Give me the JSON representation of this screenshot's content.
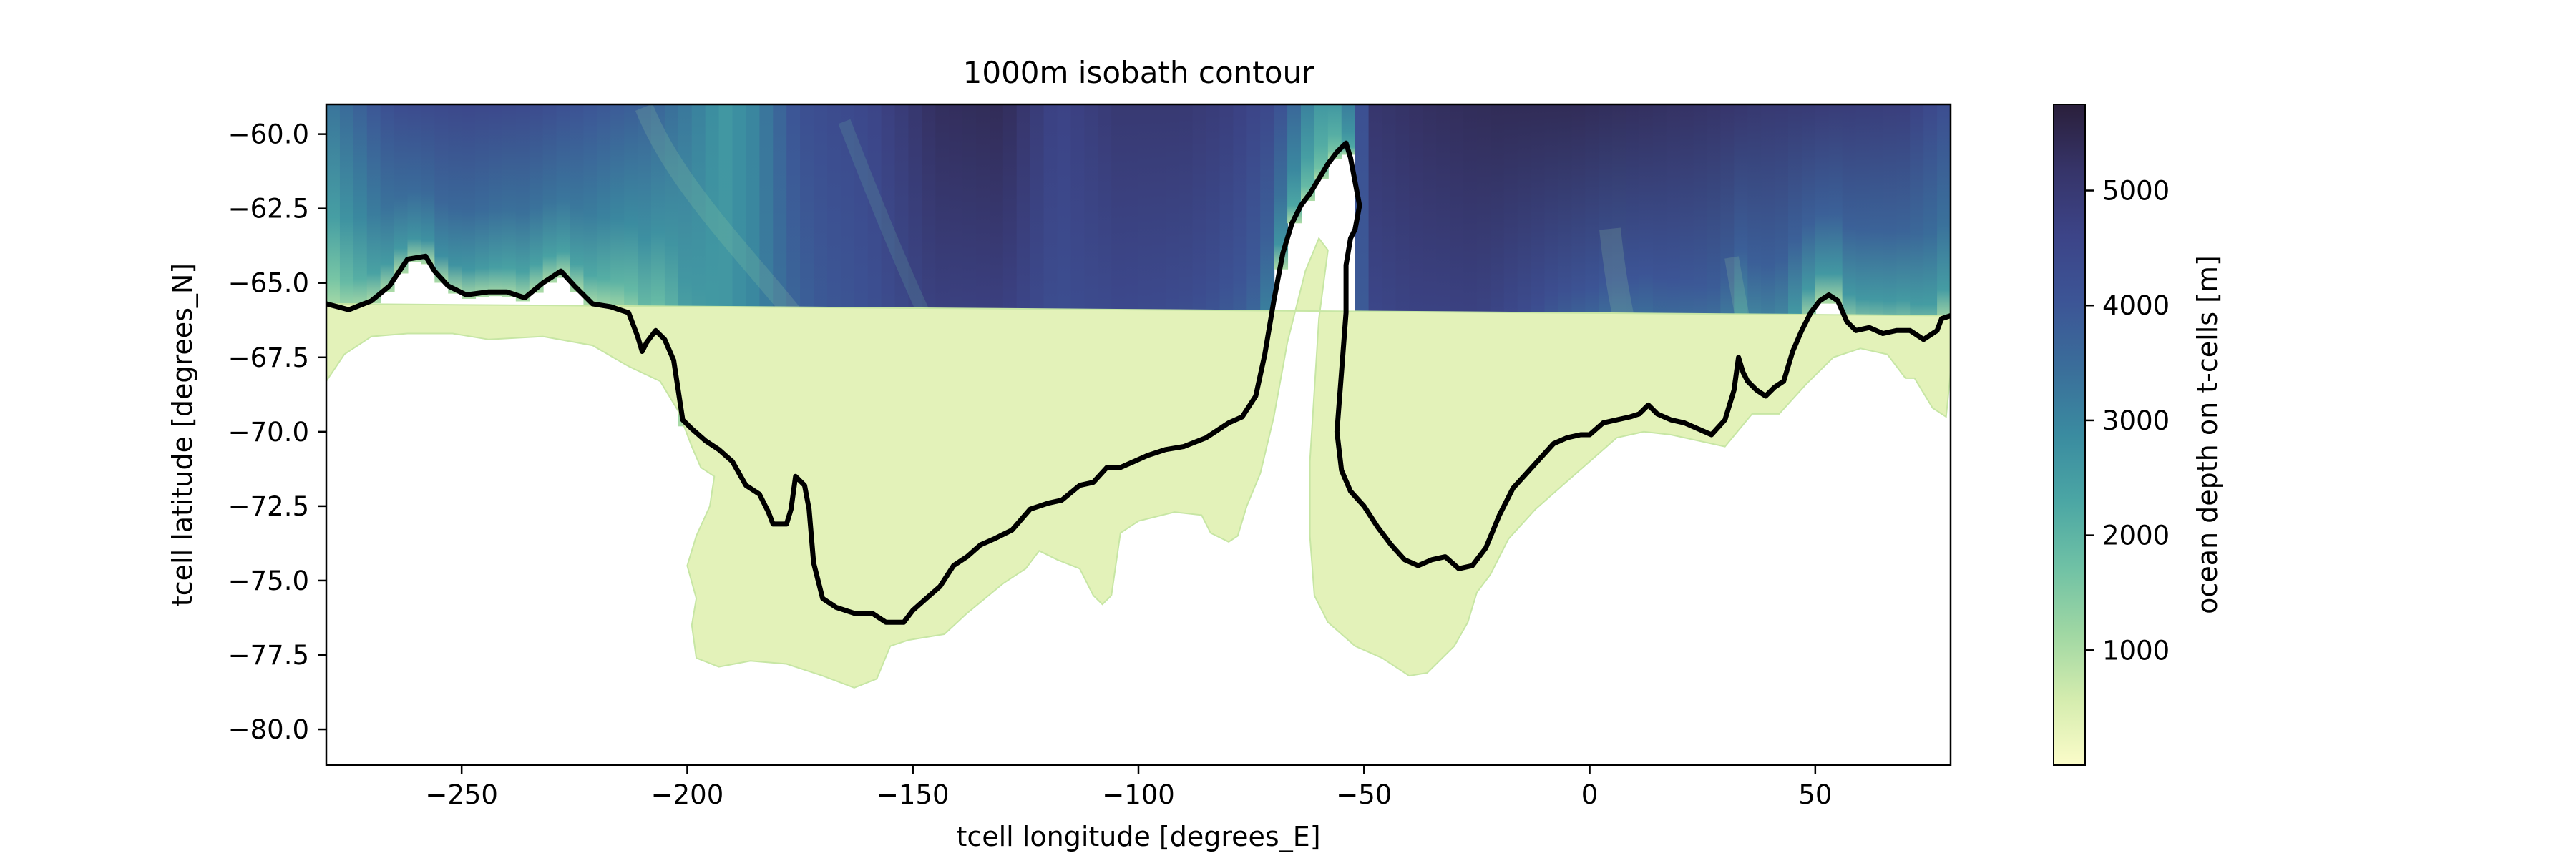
{
  "chart_data": {
    "type": "heatmap",
    "title": "1000m isobath contour",
    "xlabel": "tcell longitude [degrees_E]",
    "ylabel": "tcell latitude [degrees_N]",
    "xlim": [
      -280,
      80
    ],
    "ylim": [
      -81.2,
      -59.0
    ],
    "xticks": [
      -250,
      -200,
      -150,
      -100,
      -50,
      0,
      50
    ],
    "xtick_labels": [
      "−250",
      "−200",
      "−150",
      "−100",
      "−50",
      "0",
      "50"
    ],
    "yticks": [
      -60.0,
      -62.5,
      -65.0,
      -67.5,
      -70.0,
      -72.5,
      -75.0,
      -77.5,
      -80.0
    ],
    "ytick_labels": [
      "−60.0",
      "−62.5",
      "−65.0",
      "−67.5",
      "−70.0",
      "−72.5",
      "−75.0",
      "−77.5",
      "−80.0"
    ],
    "grid": false,
    "colorbar": {
      "label": "ocean depth on t-cells [m]",
      "range": [
        0,
        5750
      ],
      "ticks": [
        1000,
        2000,
        3000,
        4000,
        5000
      ],
      "tick_labels": [
        "1000",
        "2000",
        "3000",
        "4000",
        "5000"
      ],
      "colormap": [
        "#fbfcc9",
        "#d4ecae",
        "#9fd7a3",
        "#6fc1a5",
        "#4ba6a4",
        "#3a8ba0",
        "#3a6e9a",
        "#3c5596",
        "#3c4488",
        "#363469",
        "#2a1f3b"
      ]
    },
    "contour": {
      "level_m": 1000,
      "color": "#000000",
      "points": [
        [
          -280,
          -65.7
        ],
        [
          -275,
          -65.9
        ],
        [
          -270,
          -65.6
        ],
        [
          -266,
          -65.1
        ],
        [
          -262,
          -64.2
        ],
        [
          -258,
          -64.1
        ],
        [
          -256,
          -64.6
        ],
        [
          -253,
          -65.1
        ],
        [
          -249,
          -65.4
        ],
        [
          -244,
          -65.3
        ],
        [
          -240,
          -65.3
        ],
        [
          -236,
          -65.5
        ],
        [
          -232,
          -65.0
        ],
        [
          -228,
          -64.6
        ],
        [
          -225,
          -65.1
        ],
        [
          -221,
          -65.7
        ],
        [
          -217,
          -65.8
        ],
        [
          -213,
          -66.0
        ],
        [
          -211,
          -66.8
        ],
        [
          -210,
          -67.3
        ],
        [
          -209,
          -67.0
        ],
        [
          -207,
          -66.6
        ],
        [
          -205,
          -66.9
        ],
        [
          -203,
          -67.6
        ],
        [
          -202,
          -68.6
        ],
        [
          -201,
          -69.6
        ],
        [
          -199,
          -69.9
        ],
        [
          -196,
          -70.3
        ],
        [
          -193,
          -70.6
        ],
        [
          -190,
          -71.0
        ],
        [
          -187,
          -71.8
        ],
        [
          -184,
          -72.1
        ],
        [
          -182,
          -72.7
        ],
        [
          -181,
          -73.1
        ],
        [
          -178,
          -73.1
        ],
        [
          -177,
          -72.6
        ],
        [
          -176,
          -71.5
        ],
        [
          -174,
          -71.8
        ],
        [
          -173,
          -72.6
        ],
        [
          -172,
          -74.4
        ],
        [
          -171,
          -75.0
        ],
        [
          -170,
          -75.6
        ],
        [
          -167,
          -75.9
        ],
        [
          -163,
          -76.1
        ],
        [
          -159,
          -76.1
        ],
        [
          -156,
          -76.4
        ],
        [
          -152,
          -76.4
        ],
        [
          -150,
          -76.0
        ],
        [
          -147,
          -75.6
        ],
        [
          -144,
          -75.2
        ],
        [
          -141,
          -74.5
        ],
        [
          -138,
          -74.2
        ],
        [
          -135,
          -73.8
        ],
        [
          -132,
          -73.6
        ],
        [
          -128,
          -73.3
        ],
        [
          -124,
          -72.6
        ],
        [
          -120,
          -72.4
        ],
        [
          -117,
          -72.3
        ],
        [
          -113,
          -71.8
        ],
        [
          -110,
          -71.7
        ],
        [
          -107,
          -71.2
        ],
        [
          -104,
          -71.2
        ],
        [
          -101,
          -71.0
        ],
        [
          -98,
          -70.8
        ],
        [
          -94,
          -70.6
        ],
        [
          -90,
          -70.5
        ],
        [
          -85,
          -70.2
        ],
        [
          -80,
          -69.7
        ],
        [
          -77,
          -69.5
        ],
        [
          -74,
          -68.8
        ],
        [
          -72,
          -67.4
        ],
        [
          -70,
          -65.6
        ],
        [
          -68,
          -64.0
        ],
        [
          -66,
          -63.0
        ],
        [
          -64,
          -62.4
        ],
        [
          -62,
          -62.0
        ],
        [
          -60,
          -61.5
        ],
        [
          -58,
          -61.0
        ],
        [
          -56,
          -60.6
        ],
        [
          -54,
          -60.3
        ],
        [
          -53,
          -60.8
        ],
        [
          -52,
          -61.6
        ],
        [
          -51,
          -62.4
        ],
        [
          -52,
          -63.2
        ],
        [
          -53,
          -63.5
        ],
        [
          -54,
          -64.4
        ],
        [
          -54,
          -66.0
        ],
        [
          -55,
          -68.0
        ],
        [
          -56,
          -70.0
        ],
        [
          -55,
          -71.3
        ],
        [
          -53,
          -72.0
        ],
        [
          -50,
          -72.5
        ],
        [
          -47,
          -73.2
        ],
        [
          -44,
          -73.8
        ],
        [
          -41,
          -74.3
        ],
        [
          -38,
          -74.5
        ],
        [
          -35,
          -74.3
        ],
        [
          -32,
          -74.2
        ],
        [
          -29,
          -74.6
        ],
        [
          -26,
          -74.5
        ],
        [
          -23,
          -73.9
        ],
        [
          -20,
          -72.8
        ],
        [
          -17,
          -71.9
        ],
        [
          -14,
          -71.4
        ],
        [
          -11,
          -70.9
        ],
        [
          -8,
          -70.4
        ],
        [
          -5,
          -70.2
        ],
        [
          -2,
          -70.1
        ],
        [
          0,
          -70.1
        ],
        [
          3,
          -69.7
        ],
        [
          6,
          -69.6
        ],
        [
          9,
          -69.5
        ],
        [
          11,
          -69.4
        ],
        [
          13,
          -69.1
        ],
        [
          15,
          -69.4
        ],
        [
          18,
          -69.6
        ],
        [
          21,
          -69.7
        ],
        [
          24,
          -69.9
        ],
        [
          27,
          -70.1
        ],
        [
          30,
          -69.6
        ],
        [
          32,
          -68.6
        ],
        [
          33,
          -67.5
        ],
        [
          34,
          -68.0
        ],
        [
          35,
          -68.3
        ],
        [
          37,
          -68.6
        ],
        [
          39,
          -68.8
        ],
        [
          41,
          -68.5
        ],
        [
          43,
          -68.3
        ],
        [
          45,
          -67.3
        ],
        [
          47,
          -66.6
        ],
        [
          49,
          -66.0
        ],
        [
          51,
          -65.6
        ],
        [
          53,
          -65.4
        ],
        [
          55,
          -65.6
        ],
        [
          57,
          -66.3
        ],
        [
          59,
          -66.6
        ],
        [
          62,
          -66.5
        ],
        [
          65,
          -66.7
        ],
        [
          68,
          -66.6
        ],
        [
          71,
          -66.6
        ],
        [
          74,
          -66.9
        ],
        [
          77,
          -66.6
        ],
        [
          78,
          -66.2
        ],
        [
          80,
          -66.1
        ]
      ]
    },
    "ocean_front_depth_m": [
      [
        -280,
        1500
      ],
      [
        -268,
        2500
      ],
      [
        -255,
        2800
      ],
      [
        -240,
        2400
      ],
      [
        -225,
        2400
      ],
      [
        -210,
        1800
      ],
      [
        -200,
        2000
      ],
      [
        -190,
        2700
      ],
      [
        -175,
        3300
      ],
      [
        -160,
        3600
      ],
      [
        -145,
        3800
      ],
      [
        -130,
        3900
      ],
      [
        -115,
        3900
      ],
      [
        -100,
        3900
      ],
      [
        -85,
        3700
      ],
      [
        -72,
        3200
      ],
      [
        -62,
        1800
      ],
      [
        -55,
        1600
      ],
      [
        -50,
        3800
      ],
      [
        -40,
        3800
      ],
      [
        -25,
        3700
      ],
      [
        -10,
        3200
      ],
      [
        5,
        2600
      ],
      [
        15,
        2900
      ],
      [
        30,
        2500
      ],
      [
        45,
        2600
      ],
      [
        60,
        2600
      ],
      [
        80,
        2500
      ]
    ],
    "ocean_deep_depth_m": [
      [
        -280,
        3200
      ],
      [
        -265,
        4300
      ],
      [
        -250,
        4500
      ],
      [
        -235,
        4400
      ],
      [
        -220,
        4000
      ],
      [
        -208,
        3700
      ],
      [
        -198,
        3100
      ],
      [
        -192,
        2600
      ],
      [
        -185,
        3000
      ],
      [
        -175,
        4200
      ],
      [
        -160,
        4500
      ],
      [
        -145,
        5300
      ],
      [
        -130,
        5400
      ],
      [
        -118,
        4600
      ],
      [
        -105,
        5000
      ],
      [
        -90,
        5000
      ],
      [
        -80,
        4800
      ],
      [
        -70,
        4400
      ],
      [
        -60,
        2600
      ],
      [
        -55,
        2600
      ],
      [
        -48,
        5100
      ],
      [
        -35,
        5300
      ],
      [
        -20,
        5400
      ],
      [
        -5,
        5400
      ],
      [
        10,
        5300
      ],
      [
        25,
        5200
      ],
      [
        40,
        5000
      ],
      [
        55,
        4900
      ],
      [
        70,
        4800
      ],
      [
        80,
        4200
      ]
    ],
    "shelf_outline": [
      [
        -280,
        -65.7
      ],
      [
        -280,
        -68.3
      ],
      [
        -276,
        -67.4
      ],
      [
        -270,
        -66.8
      ],
      [
        -262,
        -66.7
      ],
      [
        -252,
        -66.7
      ],
      [
        -244,
        -66.9
      ],
      [
        -232,
        -66.8
      ],
      [
        -221,
        -67.1
      ],
      [
        -213,
        -67.8
      ],
      [
        -206,
        -68.3
      ],
      [
        -202,
        -69.3
      ],
      [
        -199,
        -70.5
      ],
      [
        -197,
        -71.2
      ],
      [
        -194,
        -71.5
      ],
      [
        -195,
        -72.5
      ],
      [
        -198,
        -73.5
      ],
      [
        -200,
        -74.5
      ],
      [
        -198,
        -75.6
      ],
      [
        -199,
        -76.5
      ],
      [
        -198,
        -77.6
      ],
      [
        -193,
        -77.9
      ],
      [
        -186,
        -77.7
      ],
      [
        -178,
        -77.8
      ],
      [
        -170,
        -78.2
      ],
      [
        -163,
        -78.6
      ],
      [
        -158,
        -78.3
      ],
      [
        -155,
        -77.2
      ],
      [
        -151,
        -77.0
      ],
      [
        -143,
        -76.8
      ],
      [
        -138,
        -76.1
      ],
      [
        -130,
        -75.1
      ],
      [
        -125,
        -74.6
      ],
      [
        -122,
        -74.0
      ],
      [
        -118,
        -74.3
      ],
      [
        -113,
        -74.6
      ],
      [
        -110,
        -75.5
      ],
      [
        -108,
        -75.8
      ],
      [
        -106,
        -75.5
      ],
      [
        -104,
        -73.4
      ],
      [
        -100,
        -73.0
      ],
      [
        -92,
        -72.7
      ],
      [
        -86,
        -72.8
      ],
      [
        -84,
        -73.4
      ],
      [
        -80,
        -73.7
      ],
      [
        -78,
        -73.5
      ],
      [
        -76,
        -72.5
      ],
      [
        -73,
        -71.4
      ],
      [
        -70,
        -69.5
      ],
      [
        -67,
        -67.0
      ],
      [
        -63,
        -64.6
      ],
      [
        -60,
        -63.5
      ],
      [
        -58,
        -63.9
      ],
      [
        -60,
        -66.2
      ],
      [
        -61,
        -68.6
      ],
      [
        -62,
        -71.0
      ],
      [
        -62,
        -73.5
      ],
      [
        -61,
        -75.5
      ],
      [
        -58,
        -76.4
      ],
      [
        -52,
        -77.2
      ],
      [
        -46,
        -77.6
      ],
      [
        -40,
        -78.2
      ],
      [
        -36,
        -78.1
      ],
      [
        -30,
        -77.2
      ],
      [
        -27,
        -76.4
      ],
      [
        -25,
        -75.4
      ],
      [
        -22,
        -74.8
      ],
      [
        -18,
        -73.6
      ],
      [
        -12,
        -72.6
      ],
      [
        -6,
        -71.8
      ],
      [
        0,
        -71.0
      ],
      [
        6,
        -70.2
      ],
      [
        12,
        -70.0
      ],
      [
        18,
        -70.1
      ],
      [
        24,
        -70.3
      ],
      [
        30,
        -70.5
      ],
      [
        36,
        -69.4
      ],
      [
        42,
        -69.4
      ],
      [
        48,
        -68.4
      ],
      [
        54,
        -67.5
      ],
      [
        60,
        -67.2
      ],
      [
        66,
        -67.4
      ],
      [
        70,
        -68.2
      ],
      [
        72,
        -68.2
      ],
      [
        76,
        -69.2
      ],
      [
        79,
        -69.5
      ],
      [
        80,
        -68.0
      ],
      [
        80,
        -66.1
      ]
    ]
  }
}
